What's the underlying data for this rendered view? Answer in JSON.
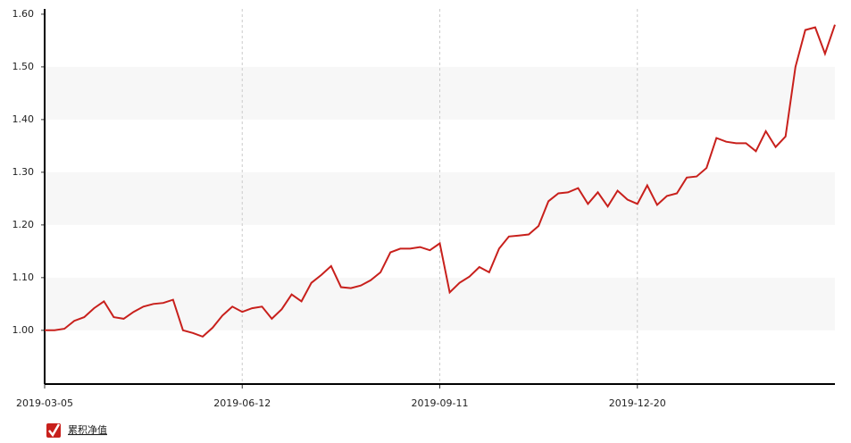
{
  "chart_data": {
    "type": "line",
    "categories": [
      "2019-03-05",
      null,
      null,
      null,
      null,
      null,
      null,
      null,
      null,
      null,
      null,
      null,
      null,
      null,
      null,
      null,
      null,
      null,
      null,
      null,
      "2019-06-12",
      null,
      null,
      null,
      null,
      null,
      null,
      null,
      null,
      null,
      null,
      null,
      null,
      null,
      null,
      null,
      null,
      null,
      null,
      null,
      "2019-09-11",
      null,
      null,
      null,
      null,
      null,
      null,
      null,
      null,
      null,
      null,
      null,
      null,
      null,
      null,
      null,
      null,
      null,
      null,
      null,
      "2019-12-20",
      null,
      null,
      null,
      null,
      null,
      null,
      null,
      null,
      null,
      null,
      null,
      null,
      null,
      null,
      null,
      null,
      null,
      null,
      null,
      null
    ],
    "series": [
      {
        "name": "累积净值",
        "color": "#c8201c",
        "values": [
          1.0,
          1.0,
          1.003,
          1.018,
          1.025,
          1.042,
          1.055,
          1.025,
          1.022,
          1.035,
          1.045,
          1.05,
          1.052,
          1.058,
          1.0,
          0.995,
          0.988,
          1.005,
          1.028,
          1.045,
          1.035,
          1.042,
          1.045,
          1.022,
          1.04,
          1.068,
          1.055,
          1.09,
          1.105,
          1.122,
          1.082,
          1.08,
          1.085,
          1.095,
          1.11,
          1.148,
          1.155,
          1.155,
          1.158,
          1.152,
          1.165,
          1.072,
          1.09,
          1.102,
          1.12,
          1.11,
          1.155,
          1.178,
          1.18,
          1.182,
          1.198,
          1.245,
          1.26,
          1.262,
          1.27,
          1.24,
          1.262,
          1.235,
          1.265,
          1.248,
          1.24,
          1.275,
          1.238,
          1.255,
          1.26,
          1.29,
          1.292,
          1.308,
          1.365,
          1.358,
          1.355,
          1.355,
          1.34,
          1.378,
          1.348,
          1.368,
          1.5,
          1.57,
          1.575,
          1.525,
          1.58
        ]
      }
    ],
    "ylim": [
      0.898,
      1.61
    ],
    "yticks": [
      {
        "value": 1,
        "label": "1.00"
      },
      {
        "value": 1.1,
        "label": "1.10"
      },
      {
        "value": 1.2,
        "label": "1.20"
      },
      {
        "value": 1.3,
        "label": "1.30"
      },
      {
        "value": 1.4,
        "label": "1.40"
      },
      {
        "value": 1.5,
        "label": "1.50"
      },
      {
        "value": 1.6,
        "label": "1.60"
      }
    ],
    "grid": true
  }
}
